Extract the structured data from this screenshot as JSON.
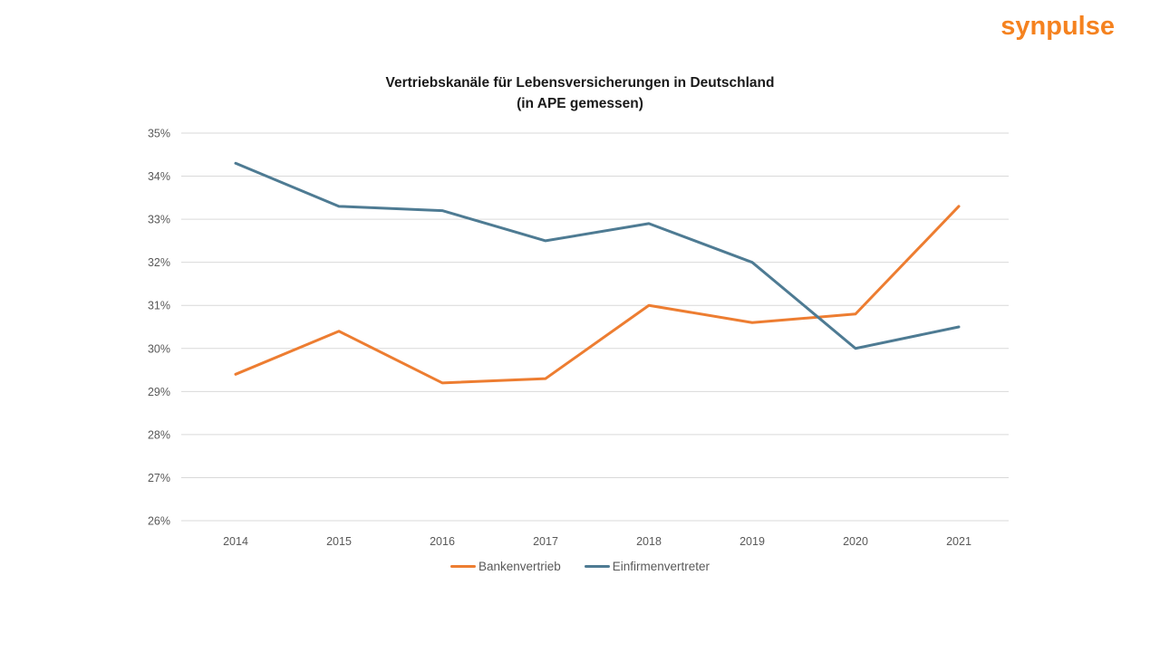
{
  "page": {
    "background": "#ffffff"
  },
  "header": {
    "logo_text": "synpulse",
    "logo_color": "#f5821f"
  },
  "chart_data": {
    "type": "line",
    "title": "Vertriebskanäle für Lebensversicherungen in Deutschland",
    "subtitle": "(in APE gemessen)",
    "categories": [
      "2014",
      "2015",
      "2016",
      "2017",
      "2018",
      "2019",
      "2020",
      "2021"
    ],
    "series": [
      {
        "name": "Bankenvertrieb",
        "color": "#ED7D31",
        "values": [
          29.4,
          30.4,
          29.2,
          29.3,
          31.0,
          30.6,
          30.8,
          33.3
        ]
      },
      {
        "name": "Einfirmenvertreter",
        "color": "#4E7B93",
        "values": [
          34.3,
          33.3,
          33.2,
          32.5,
          32.9,
          32.0,
          30.0,
          30.5
        ]
      }
    ],
    "ylim": [
      26,
      35
    ],
    "ytick_step": 1,
    "ytick_suffix": "%",
    "xlabel": "",
    "ylabel": "",
    "grid": "horizontal",
    "legend_position": "bottom",
    "gridline_color": "#d9d9d9",
    "axis_label_color": "#595959",
    "title_color": "#1a1a1a"
  }
}
